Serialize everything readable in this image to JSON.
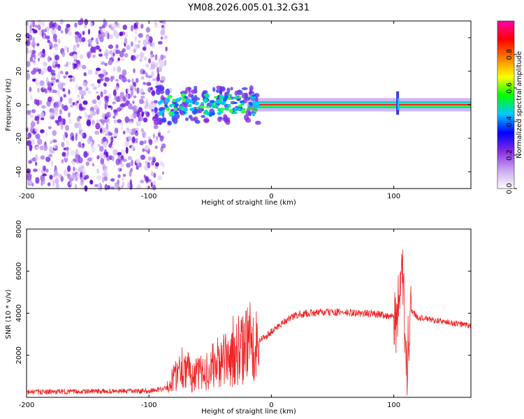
{
  "chart_data": [
    {
      "type": "heatmap",
      "title": "YM08.2026.005.01.32.G31",
      "xlabel": "Height of straight line (km)",
      "ylabel": "Frequency (Hz)",
      "xlim": [
        -200,
        163
      ],
      "ylim": [
        -50,
        50
      ],
      "xticks": [
        -200,
        -100,
        0,
        100
      ],
      "yticks": [
        40,
        20,
        0,
        -20,
        -40
      ],
      "colorbar": {
        "label": "Normalized spectral amplitude",
        "range": [
          0,
          1
        ],
        "ticks": [
          "0.0",
          "0.2",
          "0.4",
          "0.6",
          "0.8"
        ],
        "colors": [
          "#ffffff",
          "#c9a6f2",
          "#8a2be2",
          "#0000ff",
          "#00c8ff",
          "#00ff00",
          "#ffff00",
          "#ff7f00",
          "#ff0000",
          "#ff00aa"
        ]
      },
      "features": {
        "noise_region_x": [
          -200,
          -88
        ],
        "signal_band_centre_hz": 0,
        "strong_line_from_x": -10
      }
    },
    {
      "type": "line",
      "title": "",
      "xlabel": "Height of straight line (km)",
      "ylabel": "SNR (10 * v/v)",
      "xlim": [
        -200,
        163
      ],
      "ylim": [
        0,
        8000
      ],
      "xticks": [
        -200,
        -100,
        0,
        100
      ],
      "yticks": [
        8000,
        6000,
        4000,
        2000
      ],
      "series": [
        {
          "name": "SNR",
          "color": "#ee2222",
          "x": [
            -200,
            -150,
            -100,
            -85,
            -78,
            -72,
            -65,
            -55,
            -45,
            -35,
            -25,
            -18,
            -10,
            0,
            10,
            20,
            30,
            50,
            70,
            90,
            100,
            105,
            107,
            110,
            113,
            120,
            140,
            163
          ],
          "y": [
            250,
            280,
            300,
            450,
            1100,
            1600,
            1000,
            1200,
            1600,
            1800,
            2200,
            2600,
            2700,
            3100,
            3600,
            3900,
            4000,
            4050,
            4000,
            3950,
            3800,
            4100,
            6800,
            600,
            4200,
            3800,
            3600,
            3400
          ]
        }
      ]
    }
  ]
}
